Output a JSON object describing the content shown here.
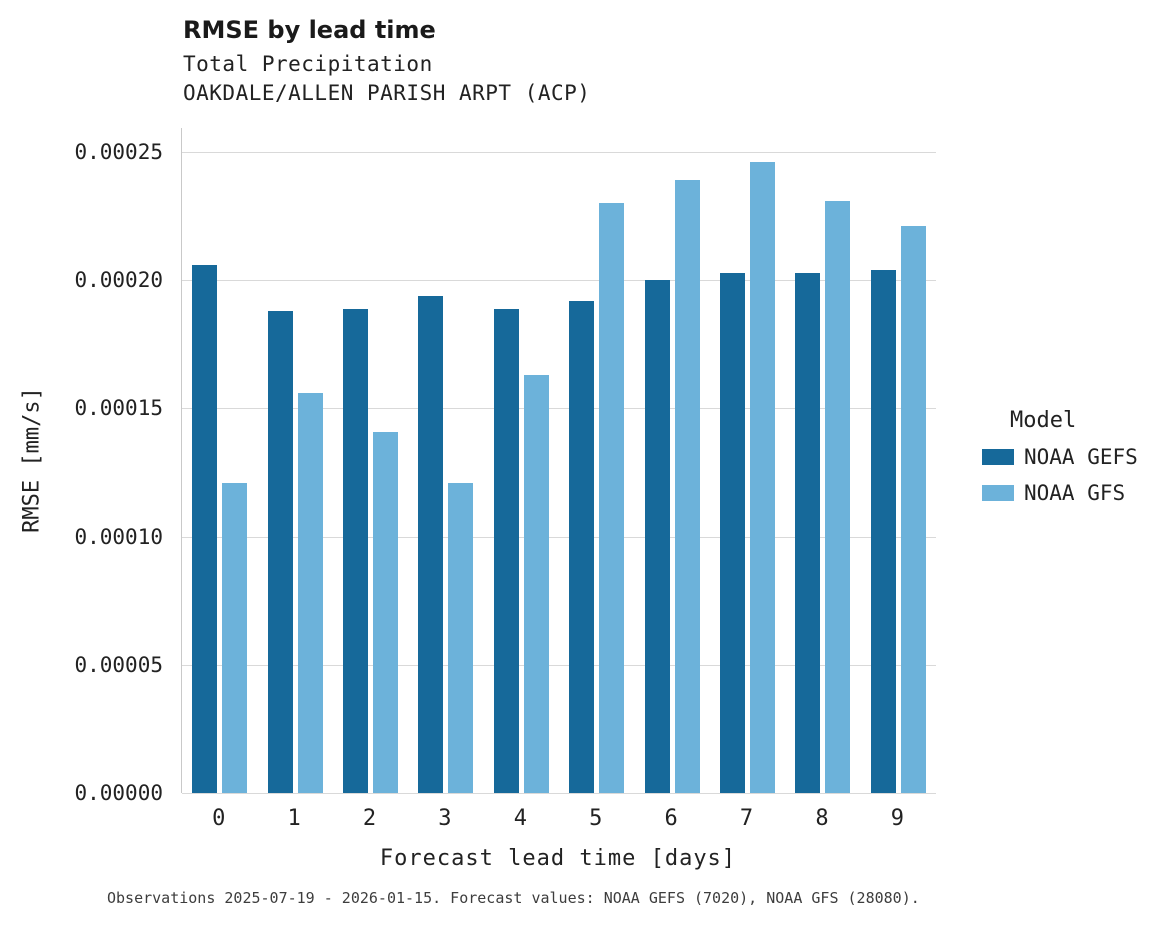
{
  "header": {
    "title": "RMSE by lead time",
    "subtitle1": "Total Precipitation",
    "subtitle2": "OAKDALE/ALLEN PARISH ARPT (ACP)"
  },
  "chart_data": {
    "type": "bar",
    "title": "RMSE by lead time",
    "subtitle": [
      "Total Precipitation",
      "OAKDALE/ALLEN PARISH ARPT (ACP)"
    ],
    "xlabel": "Forecast lead time [days]",
    "ylabel": "RMSE [mm/s]",
    "categories": [
      "0",
      "1",
      "2",
      "3",
      "4",
      "5",
      "6",
      "7",
      "8",
      "9"
    ],
    "series": [
      {
        "name": "NOAA GEFS",
        "color": "#16699a",
        "values": [
          0.000206,
          0.000188,
          0.000189,
          0.000194,
          0.000189,
          0.000192,
          0.0002,
          0.000203,
          0.000203,
          0.000204
        ]
      },
      {
        "name": "NOAA GFS",
        "color": "#6cb2da",
        "values": [
          0.000121,
          0.000156,
          0.000141,
          0.000121,
          0.000163,
          0.00023,
          0.000239,
          0.000246,
          0.000231,
          0.000221
        ]
      }
    ],
    "ylim": [
      0,
      0.0002594
    ],
    "yticks": [
      0,
      5e-05,
      0.0001,
      0.00015,
      0.0002,
      0.00025
    ],
    "ytick_labels": [
      "0.00000",
      "0.00005",
      "0.00010",
      "0.00015",
      "0.00020",
      "0.00025"
    ],
    "grid": "horizontal",
    "legend_title": "Model",
    "legend_position": "right"
  },
  "legend": {
    "title": "Model",
    "items": [
      {
        "label": "NOAA GEFS",
        "color": "#16699a"
      },
      {
        "label": "NOAA GFS",
        "color": "#6cb2da"
      }
    ]
  },
  "caption": "Observations 2025-07-19 - 2026-01-15. Forecast values: NOAA GEFS (7020), NOAA GFS (28080)."
}
